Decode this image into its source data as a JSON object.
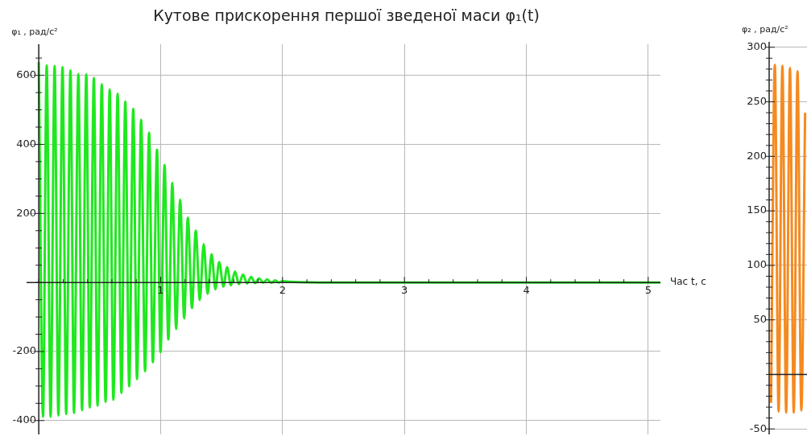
{
  "chart_data": [
    {
      "type": "line",
      "title": "Кутове прискорення першої зведеної маси φ₁(t)",
      "xlabel": "Час t, с",
      "ylabel": "φ₁ , рад/с²",
      "color": "#1fe81f",
      "x": [
        0,
        0.035,
        0.065,
        0.097,
        0.13,
        0.161,
        0.195,
        0.225,
        0.26,
        0.289,
        0.325,
        0.355,
        0.39,
        0.418,
        0.452,
        0.482,
        0.517,
        0.548,
        0.582,
        0.612,
        0.647,
        0.678,
        0.71,
        0.742,
        0.775,
        0.806,
        0.84,
        0.872,
        0.905,
        0.936,
        0.97,
        0.999,
        1.032,
        1.063,
        1.096,
        1.127,
        1.16,
        1.193,
        1.223,
        1.257,
        1.288,
        1.321,
        1.353,
        1.385,
        1.418,
        1.449,
        1.48,
        1.515,
        1.545,
        1.577,
        1.61,
        1.642,
        1.676,
        1.709,
        1.742,
        1.775,
        1.808,
        1.841,
        1.874,
        1.907,
        1.94,
        1.97,
        2.0,
        2.065,
        2.13,
        2.3,
        5.1
      ],
      "values": [
        638,
        -389,
        629,
        -389,
        627,
        -385,
        624,
        -381,
        614,
        -378,
        604,
        -370,
        603,
        -362,
        593,
        -357,
        574,
        -346,
        559,
        -340,
        547,
        -320,
        524,
        -301,
        503,
        -280,
        471,
        -257,
        434,
        -231,
        385,
        -202,
        340,
        -165,
        288,
        -135,
        240,
        -104,
        188,
        -74,
        150,
        -51,
        111,
        -33,
        82,
        -20,
        59,
        -12,
        44,
        -8,
        32,
        -5,
        23,
        -3,
        16,
        -2,
        12,
        -1,
        9,
        -1,
        6,
        0,
        4,
        2,
        1,
        0,
        0
      ],
      "xlim": [
        -0.1,
        5.1
      ],
      "ylim": [
        -440,
        690
      ],
      "grid": true,
      "xticks": [
        {
          "value": 0,
          "label": null
        },
        {
          "value": 0.2,
          "label": null
        },
        {
          "value": 0.4,
          "label": null
        },
        {
          "value": 0.6,
          "label": null
        },
        {
          "value": 0.8,
          "label": null
        },
        1,
        {
          "value": 1.2,
          "label": null
        },
        {
          "value": 1.4,
          "label": null
        },
        {
          "value": 1.6,
          "label": null
        },
        {
          "value": 1.8,
          "label": null
        },
        2,
        {
          "value": 2.2,
          "label": null
        },
        {
          "value": 2.4,
          "label": null
        },
        {
          "value": 2.6,
          "label": null
        },
        {
          "value": 2.8,
          "label": null
        },
        3,
        {
          "value": 3.2,
          "label": null
        },
        {
          "value": 3.4,
          "label": null
        },
        {
          "value": 3.6,
          "label": null
        },
        {
          "value": 3.8,
          "label": null
        },
        4,
        {
          "value": 4.2,
          "label": null
        },
        {
          "value": 4.4,
          "label": null
        },
        {
          "value": 4.6,
          "label": null
        },
        {
          "value": 4.8,
          "label": null
        },
        5
      ],
      "yticks": [
        -400,
        {
          "value": -350,
          "label": null
        },
        {
          "value": -300,
          "label": null
        },
        {
          "value": -250,
          "label": null
        },
        -200,
        {
          "value": -150,
          "label": null
        },
        {
          "value": -100,
          "label": null
        },
        {
          "value": -50,
          "label": null
        },
        {
          "value": 0,
          "label": null
        },
        {
          "value": 50,
          "label": null
        },
        {
          "value": 100,
          "label": null
        },
        {
          "value": 150,
          "label": null
        },
        200,
        {
          "value": 250,
          "label": null
        },
        {
          "value": 300,
          "label": null
        },
        {
          "value": 350,
          "label": null
        },
        400,
        {
          "value": 450,
          "label": null
        },
        {
          "value": 500,
          "label": null
        },
        {
          "value": 550,
          "label": null
        },
        600,
        {
          "value": 650,
          "label": null
        }
      ]
    },
    {
      "type": "line",
      "ylabel": "φ₂ , рад/с²",
      "color": "#f58a1f",
      "categories": [
        null,
        null,
        null,
        null,
        null,
        null,
        null,
        null,
        null,
        null
      ],
      "values": [
        -26,
        284,
        -34,
        283,
        -35,
        281,
        -35,
        278,
        -33,
        240
      ],
      "ylim": [
        -55,
        305
      ],
      "grid": "y",
      "tick_labels": "y",
      "yticks": [
        -50,
        {
          "value": -40,
          "label": null
        },
        {
          "value": -30,
          "label": null
        },
        {
          "value": -20,
          "label": null
        },
        {
          "value": -10,
          "label": null
        },
        {
          "value": 0,
          "label": null
        },
        {
          "value": 10,
          "label": null
        },
        {
          "value": 20,
          "label": null
        },
        {
          "value": 30,
          "label": null
        },
        {
          "value": 40,
          "label": null
        },
        50,
        {
          "value": 60,
          "label": null
        },
        {
          "value": 70,
          "label": null
        },
        {
          "value": 80,
          "label": null
        },
        {
          "value": 90,
          "label": null
        },
        100,
        {
          "value": 110,
          "label": null
        },
        {
          "value": 120,
          "label": null
        },
        {
          "value": 130,
          "label": null
        },
        {
          "value": 140,
          "label": null
        },
        150,
        {
          "value": 160,
          "label": null
        },
        {
          "value": 170,
          "label": null
        },
        {
          "value": 180,
          "label": null
        },
        {
          "value": 190,
          "label": null
        },
        200,
        {
          "value": 210,
          "label": null
        },
        {
          "value": 220,
          "label": null
        },
        {
          "value": 230,
          "label": null
        },
        {
          "value": 240,
          "label": null
        },
        250,
        {
          "value": 260,
          "label": null
        },
        {
          "value": 270,
          "label": null
        },
        {
          "value": 280,
          "label": null
        },
        {
          "value": 290,
          "label": null
        },
        300
      ]
    }
  ]
}
